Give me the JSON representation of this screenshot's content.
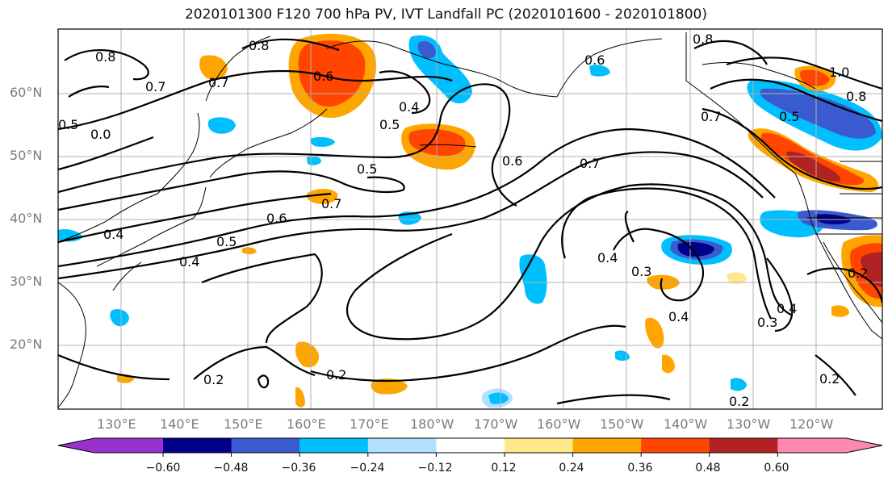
{
  "title": "2020101300 F120 700 hPa PV, IVT Landfall PC (2020101600 - 2020101800)",
  "lat_labels": [
    "60°N",
    "50°N",
    "40°N",
    "30°N",
    "20°N"
  ],
  "lon_labels": [
    "130°E",
    "140°E",
    "150°E",
    "160°E",
    "170°E",
    "180°W",
    "170°W",
    "160°W",
    "150°W",
    "140°W",
    "130°W",
    "120°W"
  ],
  "contour_labels": [
    "0.7",
    "0.8",
    "0.8",
    "0.7",
    "0.6",
    "0.6",
    "0.4",
    "0.5",
    "0.5",
    "0.6",
    "0.7",
    "0.8",
    "1.0",
    "0.8",
    "0.7",
    "0.7",
    "0.6",
    "0.5",
    "0.4",
    "0.4",
    "0.3",
    "0.4",
    "0.3",
    "0.4",
    "0.2",
    "0.2",
    "0.2",
    "0.2",
    "0.2",
    "0.4",
    "0.5",
    "0.0",
    "0.5"
  ],
  "colorbar": {
    "ticks": [
      "−0.60",
      "−0.48",
      "−0.36",
      "−0.24",
      "−0.12",
      "0.12",
      "0.24",
      "0.36",
      "0.48",
      "0.60"
    ],
    "colors": [
      "#9932CC",
      "#00008B",
      "#3A5BCF",
      "#00BFFF",
      "#B0E2FF",
      "#FFFFFF",
      "#FFE88A",
      "#FFA500",
      "#FF4500",
      "#B22222",
      "#FF88B0"
    ]
  }
}
